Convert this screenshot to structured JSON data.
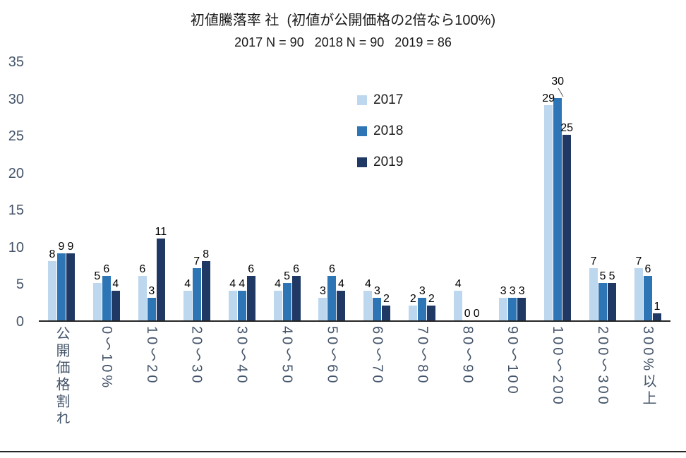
{
  "chart_data": {
    "type": "bar",
    "title": "初値騰落率 社  (初値が公開価格の2倍なら100%)",
    "subtitle": "2017 N = 90   2018 N = 90   2019 = 86",
    "categories": [
      "公開価格割れ",
      "0〜10%",
      "10〜20",
      "20〜30",
      "30〜40",
      "40〜50",
      "50〜60",
      "60〜70",
      "70〜80",
      "80〜90",
      "90〜100",
      "100〜200",
      "200〜300",
      "300%以上"
    ],
    "series": [
      {
        "name": "2017",
        "color": "#BDD7EE",
        "values": [
          8,
          5,
          6,
          4,
          4,
          4,
          3,
          4,
          2,
          4,
          3,
          29,
          7,
          7
        ]
      },
      {
        "name": "2018",
        "color": "#2E75B6",
        "values": [
          9,
          6,
          3,
          7,
          4,
          5,
          6,
          3,
          3,
          0,
          3,
          30,
          5,
          6
        ]
      },
      {
        "name": "2019",
        "color": "#1F3864",
        "values": [
          9,
          4,
          11,
          8,
          6,
          6,
          4,
          2,
          2,
          0,
          3,
          25,
          5,
          1
        ]
      }
    ],
    "ylim": [
      0,
      35
    ],
    "yticks": [
      0,
      5,
      10,
      15,
      20,
      25,
      30,
      35
    ],
    "grid": false,
    "data_labels": true,
    "legend_position": "upper-center-inside",
    "axis_label_color": "#44546A"
  }
}
